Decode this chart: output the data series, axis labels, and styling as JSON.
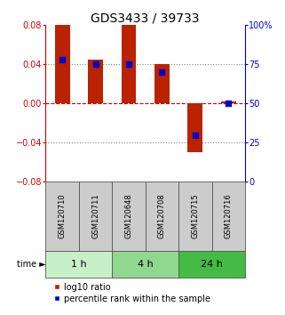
{
  "title": "GDS3433 / 39733",
  "samples": [
    "GSM120710",
    "GSM120711",
    "GSM120648",
    "GSM120708",
    "GSM120715",
    "GSM120716"
  ],
  "log10_ratio": [
    0.08,
    0.045,
    0.08,
    0.04,
    -0.05,
    0.002
  ],
  "percentile_rank": [
    78,
    75,
    75,
    70,
    30,
    50
  ],
  "ylim_left": [
    -0.08,
    0.08
  ],
  "ylim_right": [
    0,
    100
  ],
  "yticks_left": [
    -0.08,
    -0.04,
    0,
    0.04,
    0.08
  ],
  "yticks_right": [
    0,
    25,
    50,
    75,
    100
  ],
  "ytick_labels_right": [
    "0",
    "25",
    "50",
    "75",
    "100%"
  ],
  "hlines_dotted": [
    0.04,
    -0.04
  ],
  "hline_dashed": 0.0,
  "time_groups": [
    {
      "label": "1 h",
      "start": 0,
      "end": 2,
      "color": "#c8f0c8"
    },
    {
      "label": "4 h",
      "start": 2,
      "end": 4,
      "color": "#90d890"
    },
    {
      "label": "24 h",
      "start": 4,
      "end": 6,
      "color": "#44bb44"
    }
  ],
  "bar_color": "#bb2200",
  "dot_color": "#0000cc",
  "bar_width": 0.45,
  "dot_size": 22,
  "sample_box_color": "#cccccc",
  "background_color": "#ffffff",
  "title_fontsize": 10,
  "tick_fontsize": 7,
  "sample_fontsize": 6,
  "legend_fontsize": 7,
  "time_label_fontsize": 8
}
